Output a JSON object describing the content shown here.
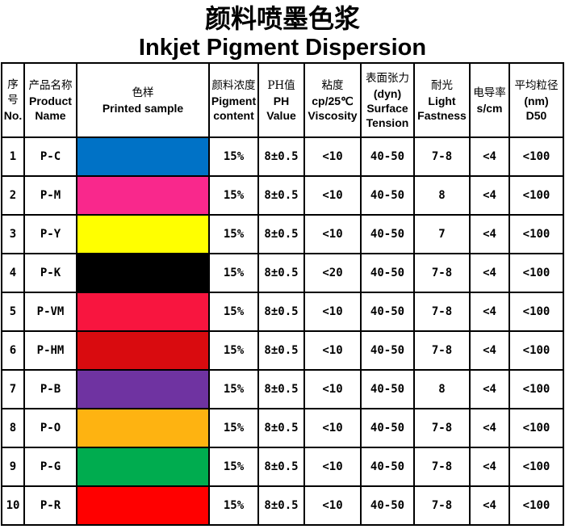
{
  "title": {
    "zh": "颜料喷墨色浆",
    "en": "Inkjet Pigment Dispersion"
  },
  "table": {
    "columns": [
      {
        "id": "no",
        "lines": [
          "序",
          "号",
          "No."
        ]
      },
      {
        "id": "product-name",
        "lines": [
          "产品名称",
          "Product",
          "Name"
        ]
      },
      {
        "id": "printed-sample",
        "lines": [
          "色样",
          "Printed sample"
        ]
      },
      {
        "id": "pigment-content",
        "lines": [
          "颜料浓度",
          "Pigment",
          "content"
        ]
      },
      {
        "id": "ph-value",
        "lines": [
          "PH值",
          "PH",
          "Value"
        ]
      },
      {
        "id": "viscosity",
        "lines": [
          "粘度",
          "cp/25℃",
          "Viscosity"
        ]
      },
      {
        "id": "surface-tension",
        "lines": [
          "表面张力",
          "(dyn)",
          "Surface",
          "Tension"
        ]
      },
      {
        "id": "light-fastness",
        "lines": [
          "耐光",
          "Light",
          "Fastness"
        ]
      },
      {
        "id": "conductivity",
        "lines": [
          "电导率",
          "s/cm"
        ]
      },
      {
        "id": "d50",
        "lines": [
          "平均粒径",
          "(nm)",
          "D50"
        ]
      }
    ],
    "rows": [
      {
        "no": "1",
        "name": "P-C",
        "color": "#0072C6",
        "pigment": "15%",
        "ph": "8±0.5",
        "viscosity": "<10",
        "tension": "40-50",
        "fastness": "7-8",
        "conductivity": "<4",
        "d50": "<100"
      },
      {
        "no": "2",
        "name": "P-M",
        "color": "#F9288C",
        "pigment": "15%",
        "ph": "8±0.5",
        "viscosity": "<10",
        "tension": "40-50",
        "fastness": "8",
        "conductivity": "<4",
        "d50": "<100"
      },
      {
        "no": "3",
        "name": "P-Y",
        "color": "#FFFF00",
        "pigment": "15%",
        "ph": "8±0.5",
        "viscosity": "<10",
        "tension": "40-50",
        "fastness": "7",
        "conductivity": "<4",
        "d50": "<100"
      },
      {
        "no": "4",
        "name": "P-K",
        "color": "#000000",
        "pigment": "15%",
        "ph": "8±0.5",
        "viscosity": "<20",
        "tension": "40-50",
        "fastness": "7-8",
        "conductivity": "<4",
        "d50": "<100"
      },
      {
        "no": "5",
        "name": "P-VM",
        "color": "#F8153F",
        "pigment": "15%",
        "ph": "8±0.5",
        "viscosity": "<10",
        "tension": "40-50",
        "fastness": "7-8",
        "conductivity": "<4",
        "d50": "<100"
      },
      {
        "no": "6",
        "name": "P-HM",
        "color": "#D90B0F",
        "pigment": "15%",
        "ph": "8±0.5",
        "viscosity": "<10",
        "tension": "40-50",
        "fastness": "7-8",
        "conductivity": "<4",
        "d50": "<100"
      },
      {
        "no": "7",
        "name": "P-B",
        "color": "#6F33A1",
        "pigment": "15%",
        "ph": "8±0.5",
        "viscosity": "<10",
        "tension": "40-50",
        "fastness": "8",
        "conductivity": "<4",
        "d50": "<100"
      },
      {
        "no": "8",
        "name": "P-O",
        "color": "#FEB311",
        "pigment": "15%",
        "ph": "8±0.5",
        "viscosity": "<10",
        "tension": "40-50",
        "fastness": "7-8",
        "conductivity": "<4",
        "d50": "<100"
      },
      {
        "no": "9",
        "name": "P-G",
        "color": "#00AC4F",
        "pigment": "15%",
        "ph": "8±0.5",
        "viscosity": "<10",
        "tension": "40-50",
        "fastness": "7-8",
        "conductivity": "<4",
        "d50": "<100"
      },
      {
        "no": "10",
        "name": "P-R",
        "color": "#FF0000",
        "pigment": "15%",
        "ph": "8±0.5",
        "viscosity": "<10",
        "tension": "40-50",
        "fastness": "7-8",
        "conductivity": "<4",
        "d50": "<100"
      }
    ]
  }
}
